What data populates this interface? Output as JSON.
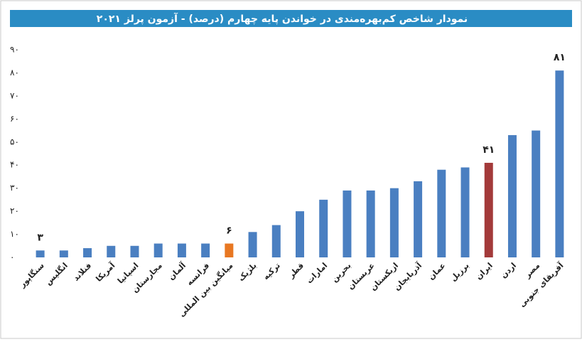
{
  "chart_data": {
    "type": "bar",
    "title": "نمودار شاخص کم‌بهره‌مندی در خواندن پایه چهارم (درصد) - آزمون پرلز ۲۰۲۱",
    "categories": [
      "سنگاپور",
      "انگلیس",
      "فنلاند",
      "آمریکا",
      "اسپانیا",
      "مجارستان",
      "آلمان",
      "فرانسه",
      "میانگین بین المللی",
      "بلژیک",
      "ترکیه",
      "قطر",
      "امارات",
      "بحرین",
      "عربستان",
      "ازبکستان",
      "آذربایجان",
      "عمان",
      "برزیل",
      "ایران",
      "اردن",
      "مصر",
      "آفریقای جنوبی"
    ],
    "values": [
      3,
      3,
      4,
      5,
      5,
      6,
      6,
      6,
      6,
      11,
      14,
      20,
      25,
      29,
      29,
      30,
      33,
      38,
      39,
      41,
      53,
      55,
      81
    ],
    "value_labels": [
      "۳",
      null,
      null,
      null,
      null,
      null,
      null,
      null,
      "۶",
      null,
      null,
      null,
      null,
      null,
      null,
      null,
      null,
      null,
      null,
      "۴۱",
      null,
      null,
      "۸۱"
    ],
    "colors": [
      "#4a7fc1",
      "#4a7fc1",
      "#4a7fc1",
      "#4a7fc1",
      "#4a7fc1",
      "#4a7fc1",
      "#4a7fc1",
      "#4a7fc1",
      "#e87722",
      "#4a7fc1",
      "#4a7fc1",
      "#4a7fc1",
      "#4a7fc1",
      "#4a7fc1",
      "#4a7fc1",
      "#4a7fc1",
      "#4a7fc1",
      "#4a7fc1",
      "#4a7fc1",
      "#a33a3a",
      "#4a7fc1",
      "#4a7fc1",
      "#4a7fc1"
    ],
    "ylim": [
      0,
      90
    ],
    "yticks": [
      {
        "value": 0,
        "label": "۰"
      },
      {
        "value": 10,
        "label": "۱۰"
      },
      {
        "value": 20,
        "label": "۲۰"
      },
      {
        "value": 30,
        "label": "۳۰"
      },
      {
        "value": 40,
        "label": "۴۰"
      },
      {
        "value": 50,
        "label": "۵۰"
      },
      {
        "value": 60,
        "label": "۶۰"
      },
      {
        "value": 70,
        "label": "۷۰"
      },
      {
        "value": 80,
        "label": "۸۰"
      },
      {
        "value": 90,
        "label": "۹۰"
      }
    ],
    "grid": false
  }
}
